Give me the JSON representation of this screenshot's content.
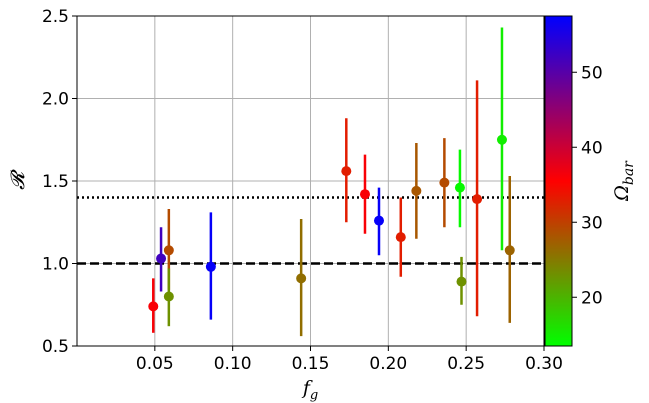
{
  "chart_data": {
    "type": "scatter",
    "title": "",
    "xlabel": "f",
    "xlabel_sub": "g",
    "ylabel": "𝓡",
    "xlim": [
      0.0,
      0.3
    ],
    "ylim": [
      0.5,
      2.5
    ],
    "xticks": [
      0.05,
      0.1,
      0.15,
      0.2,
      0.25,
      0.3
    ],
    "xtick_labels": [
      "0.05",
      "0.10",
      "0.15",
      "0.20",
      "0.25",
      "0.30"
    ],
    "yticks": [
      0.5,
      1.0,
      1.5,
      2.0,
      2.5
    ],
    "ytick_labels": [
      "0.5",
      "1.0",
      "1.5",
      "2.0",
      "2.5"
    ],
    "grid": true,
    "hlines": [
      {
        "y": 1.0,
        "style": "dashed",
        "color": "#000000"
      },
      {
        "y": 1.4,
        "style": "dotted",
        "color": "#000000"
      }
    ],
    "colorbar": {
      "label": "Ω",
      "label_sub": "bar",
      "range": [
        13.5,
        57.5
      ],
      "ticks": [
        20,
        30,
        40,
        50
      ],
      "tick_labels": [
        "20",
        "30",
        "40",
        "50"
      ],
      "colors": [
        "#00ff00",
        "#ff0000",
        "#0000ff"
      ]
    },
    "points": [
      {
        "x": 0.049,
        "y": 0.74,
        "ylo": 0.58,
        "yhi": 0.91,
        "omega": 36
      },
      {
        "x": 0.054,
        "y": 1.03,
        "ylo": 0.83,
        "yhi": 1.22,
        "omega": 52
      },
      {
        "x": 0.059,
        "y": 1.08,
        "ylo": 0.84,
        "yhi": 1.33,
        "omega": 29
      },
      {
        "x": 0.059,
        "y": 0.8,
        "ylo": 0.62,
        "yhi": 0.97,
        "omega": 23
      },
      {
        "x": 0.086,
        "y": 0.98,
        "ylo": 0.66,
        "yhi": 1.31,
        "omega": 57
      },
      {
        "x": 0.144,
        "y": 0.91,
        "ylo": 0.56,
        "yhi": 1.27,
        "omega": 26
      },
      {
        "x": 0.173,
        "y": 1.56,
        "ylo": 1.25,
        "yhi": 1.88,
        "omega": 33
      },
      {
        "x": 0.185,
        "y": 1.42,
        "ylo": 1.18,
        "yhi": 1.66,
        "omega": 36
      },
      {
        "x": 0.194,
        "y": 1.26,
        "ylo": 1.05,
        "yhi": 1.46,
        "omega": 57
      },
      {
        "x": 0.208,
        "y": 1.16,
        "ylo": 0.92,
        "yhi": 1.4,
        "omega": 33
      },
      {
        "x": 0.218,
        "y": 1.44,
        "ylo": 1.15,
        "yhi": 1.73,
        "omega": 28
      },
      {
        "x": 0.236,
        "y": 1.49,
        "ylo": 1.22,
        "yhi": 1.76,
        "omega": 29
      },
      {
        "x": 0.246,
        "y": 1.46,
        "ylo": 1.22,
        "yhi": 1.69,
        "omega": 14
      },
      {
        "x": 0.247,
        "y": 0.89,
        "ylo": 0.75,
        "yhi": 1.04,
        "omega": 23
      },
      {
        "x": 0.257,
        "y": 1.39,
        "ylo": 0.68,
        "yhi": 2.11,
        "omega": 33
      },
      {
        "x": 0.273,
        "y": 1.75,
        "ylo": 1.08,
        "yhi": 2.43,
        "omega": 15
      },
      {
        "x": 0.278,
        "y": 1.08,
        "ylo": 0.64,
        "yhi": 1.53,
        "omega": 27
      }
    ]
  }
}
